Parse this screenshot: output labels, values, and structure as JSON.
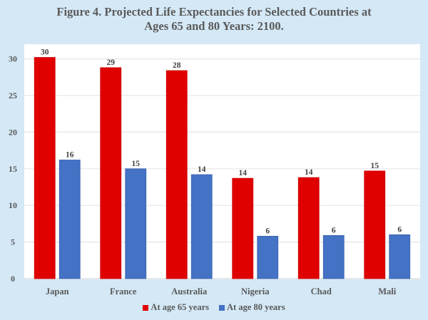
{
  "chart_data": {
    "type": "bar",
    "title": "Figure 4. Projected Life Expectancies for Selected Countries at Ages 65 and 80 Years: 2100.",
    "title_lines": [
      "Figure 4. Projected Life Expectancies for Selected Countries at",
      "Ages 65 and 80 Years: 2100."
    ],
    "xlabel": "",
    "ylabel": "",
    "categories": [
      "Japan",
      "France",
      "Australia",
      "Nigeria",
      "Chad",
      "Mali"
    ],
    "series": [
      {
        "name": "At age 65 years",
        "color": "#e00000",
        "values": [
          30.2,
          28.8,
          28.4,
          13.7,
          13.8,
          14.7
        ],
        "labels": [
          "30",
          "29",
          "28",
          "14",
          "14",
          "15"
        ]
      },
      {
        "name": "At age 80 years",
        "color": "#4472c4",
        "values": [
          16.2,
          15.0,
          14.2,
          5.8,
          5.9,
          6.0
        ],
        "labels": [
          "16",
          "15",
          "14",
          "6",
          "6",
          "6"
        ]
      }
    ],
    "ylim": [
      0,
      32
    ],
    "yticks": [
      0,
      5,
      10,
      15,
      20,
      25,
      30
    ],
    "grid": true,
    "legend_position": "bottom-center"
  }
}
